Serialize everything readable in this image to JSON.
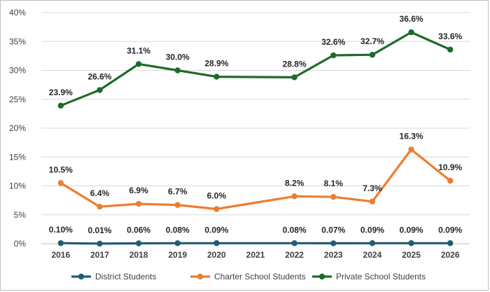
{
  "chart_data": {
    "type": "line",
    "title": "",
    "xlabel": "",
    "ylabel": "",
    "ylim": [
      0,
      40
    ],
    "y_ticks": [
      "0%",
      "5%",
      "10%",
      "15%",
      "20%",
      "25%",
      "30%",
      "35%",
      "40%"
    ],
    "y_tick_values": [
      0,
      5,
      10,
      15,
      20,
      25,
      30,
      35,
      40
    ],
    "grid": "horizontal",
    "legend_position": "bottom",
    "categories": [
      "2016",
      "2017",
      "2018",
      "2019",
      "2020",
      "2021",
      "2022",
      "2023",
      "2024",
      "2025",
      "2026"
    ],
    "series": [
      {
        "name": "District Students",
        "color": "#1f5c7a",
        "values": [
          0.1,
          0.01,
          0.06,
          0.08,
          0.09,
          null,
          0.08,
          0.07,
          0.09,
          0.09,
          0.09
        ],
        "labels": [
          "0.10%",
          "0.01%",
          "0.06%",
          "0.08%",
          "0.09%",
          "",
          "0.08%",
          "0.07%",
          "0.09%",
          "0.09%",
          "0.09%"
        ]
      },
      {
        "name": "Charter School Students",
        "color": "#ed7d31",
        "values": [
          10.5,
          6.4,
          6.9,
          6.7,
          6.0,
          null,
          8.2,
          8.1,
          7.3,
          16.3,
          10.9
        ],
        "labels": [
          "10.5%",
          "6.4%",
          "6.9%",
          "6.7%",
          "6.0%",
          "",
          "8.2%",
          "8.1%",
          "7.3%",
          "16.3%",
          "10.9%"
        ]
      },
      {
        "name": "Private School Students",
        "color": "#1e6b2a",
        "values": [
          23.9,
          26.6,
          31.1,
          30.0,
          28.9,
          null,
          28.8,
          32.6,
          32.7,
          36.6,
          33.6
        ],
        "labels": [
          "23.9%",
          "26.6%",
          "31.1%",
          "30.0%",
          "28.9%",
          "",
          "28.8%",
          "32.6%",
          "32.7%",
          "36.6%",
          "33.6%"
        ]
      }
    ]
  }
}
